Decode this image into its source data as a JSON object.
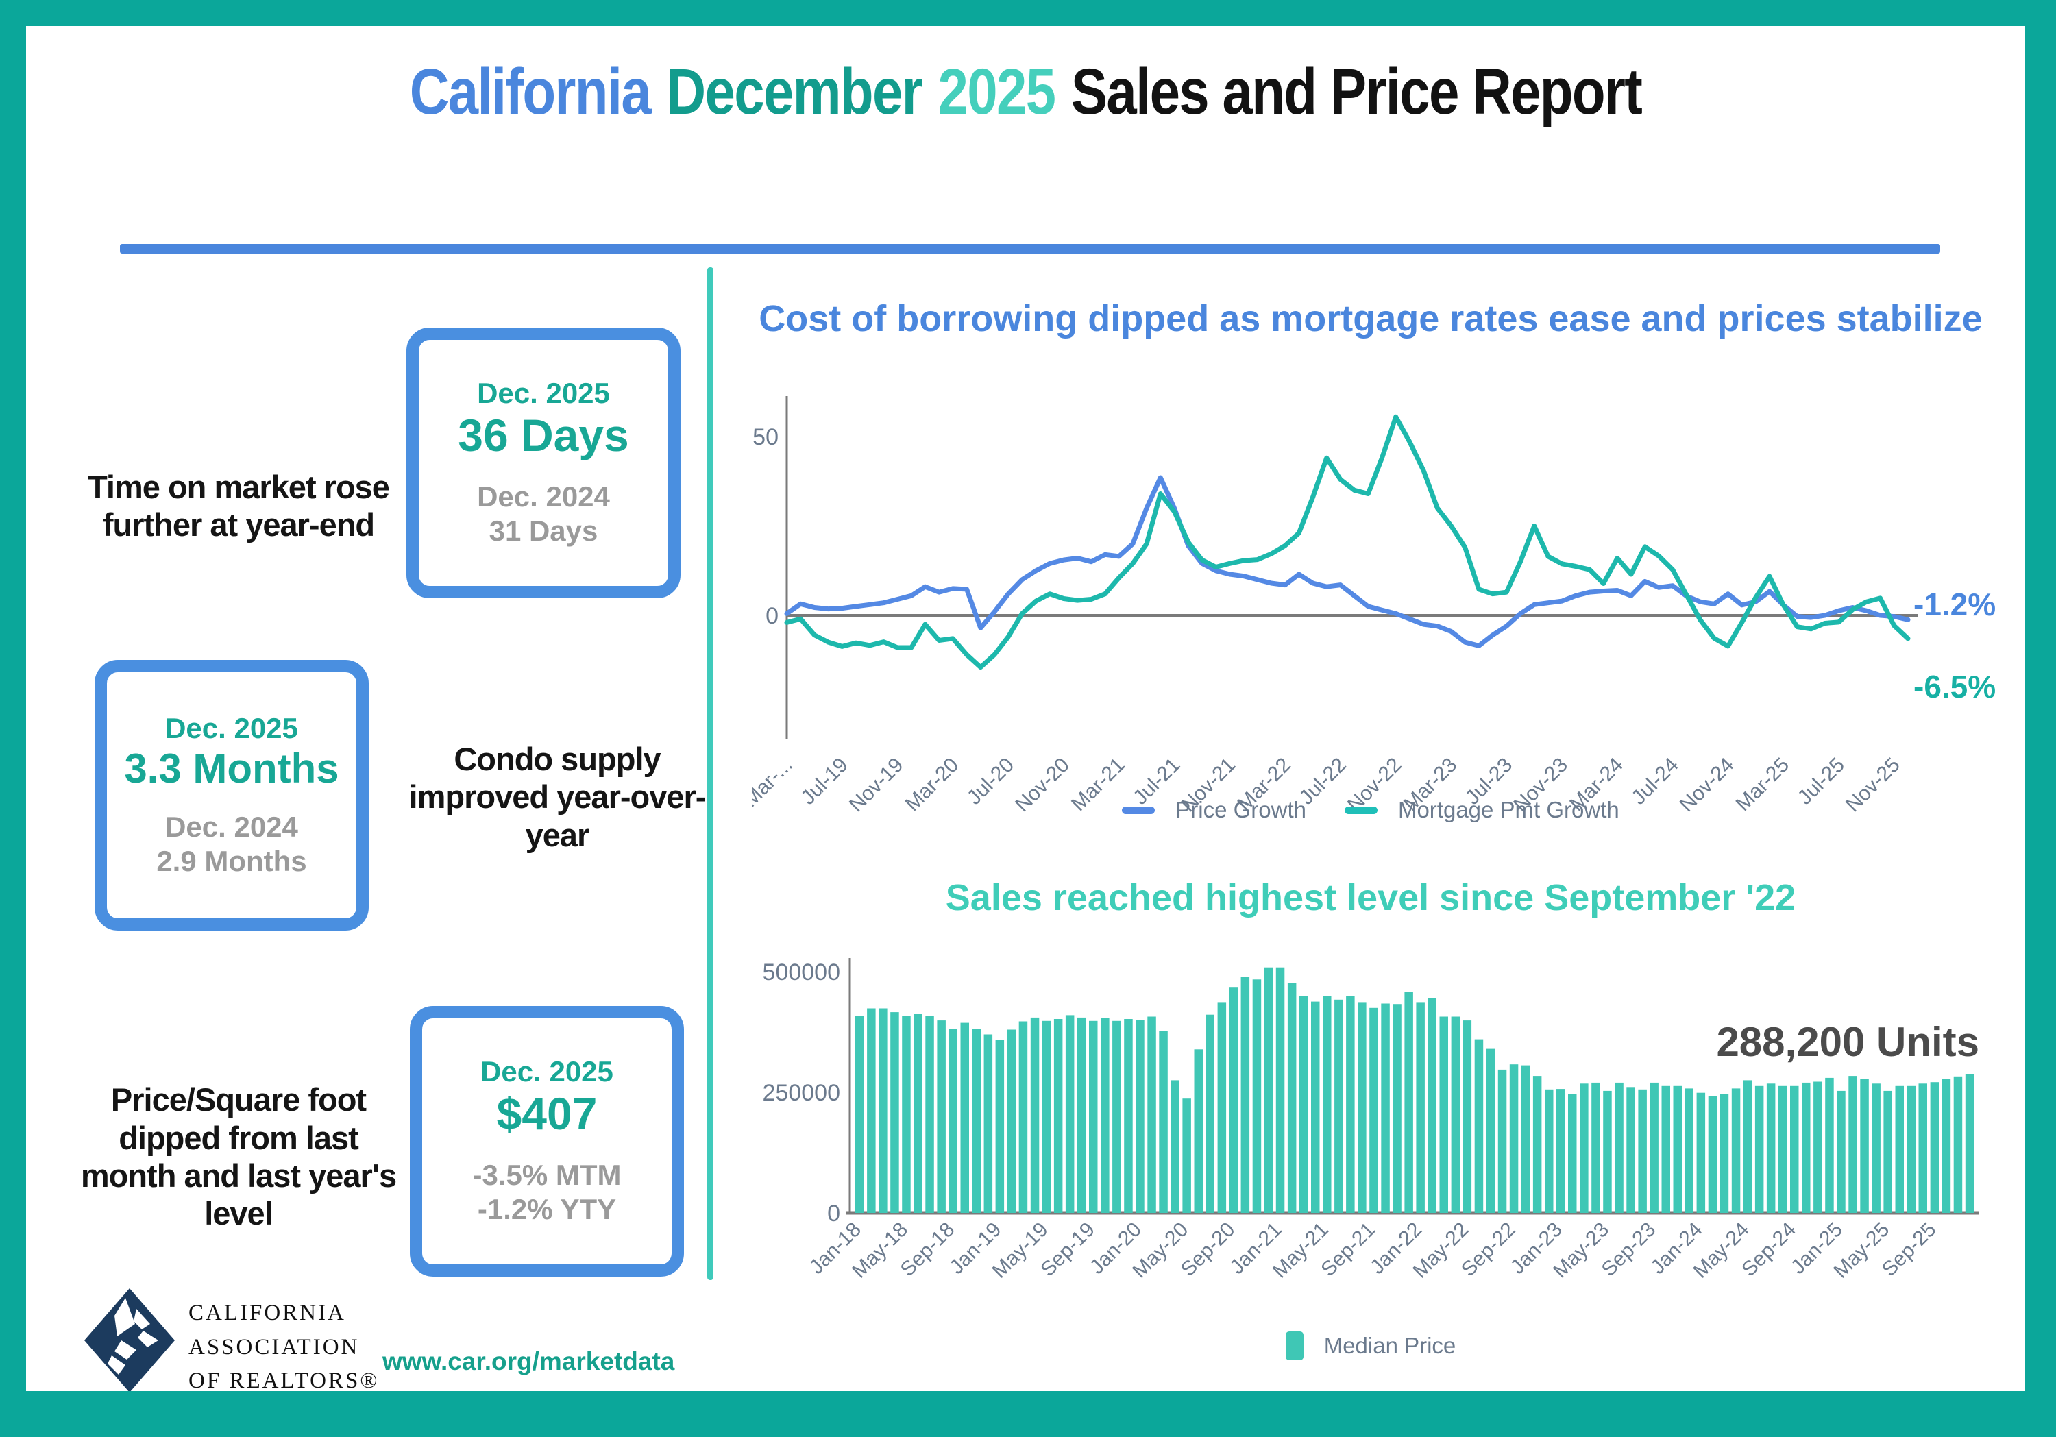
{
  "header": {
    "title_parts": [
      {
        "text": "California",
        "color": "#4a86dd"
      },
      {
        "text": "December",
        "color": "#129c8d"
      },
      {
        "text": "2025",
        "color": "#45cfbc"
      },
      {
        "text": "Sales and Price Report",
        "color": "#121212"
      }
    ]
  },
  "colors": {
    "frame": "#0ba79a",
    "accent_blue": "#4a86dd",
    "teal_dark": "#129c8d",
    "teal_light": "#45cfbc",
    "box_border": "#4a8fe0",
    "stat_teal": "#18a795",
    "stat_gray": "#9a9a9a",
    "bar_teal": "#3fc7b5",
    "line_blue": "#5489e4",
    "line_teal": "#1db8ac",
    "axis_gray": "#7a7a7a",
    "tick_gray": "#6b7a8d",
    "units_gray": "#4b4b4b",
    "logo_navy": "#1c3b5e"
  },
  "stats": [
    {
      "label": "Time on market rose further at year-end",
      "box": {
        "period": "Dec. 2025",
        "value": "36 Days",
        "sub1": "Dec. 2024",
        "sub2": "31 Days"
      }
    },
    {
      "label": "Condo supply improved year-over-year",
      "box": {
        "period": "Dec. 2025",
        "value": "3.3 Months",
        "sub1": "Dec. 2024",
        "sub2": "2.9 Months"
      }
    },
    {
      "label": "Price/Square foot dipped from last month and last year's level",
      "box": {
        "period": "Dec. 2025",
        "value": "$407",
        "sub1": "-3.5% MTM",
        "sub2": "-1.2% YTY"
      }
    }
  ],
  "footer": {
    "logo_lines": [
      "CALIFORNIA",
      "ASSOCIATION",
      "OF REALTORS®"
    ],
    "website": "www.car.org/marketdata"
  },
  "chart_data": [
    {
      "type": "line",
      "title": "Cost of borrowing dipped as mortgage rates ease and prices stabilize",
      "months": [
        "Mar-19",
        "Apr-19",
        "May-19",
        "Jun-19",
        "Jul-19",
        "Aug-19",
        "Sep-19",
        "Oct-19",
        "Nov-19",
        "Dec-19",
        "Jan-20",
        "Feb-20",
        "Mar-20",
        "Apr-20",
        "May-20",
        "Jun-20",
        "Jul-20",
        "Aug-20",
        "Sep-20",
        "Oct-20",
        "Nov-20",
        "Dec-20",
        "Jan-21",
        "Feb-21",
        "Mar-21",
        "Apr-21",
        "May-21",
        "Jun-21",
        "Jul-21",
        "Aug-21",
        "Sep-21",
        "Oct-21",
        "Nov-21",
        "Dec-21",
        "Jan-22",
        "Feb-22",
        "Mar-22",
        "Apr-22",
        "May-22",
        "Jun-22",
        "Jul-22",
        "Aug-22",
        "Sep-22",
        "Oct-22",
        "Nov-22",
        "Dec-22",
        "Jan-23",
        "Feb-23",
        "Mar-23",
        "Apr-23",
        "May-23",
        "Jun-23",
        "Jul-23",
        "Aug-23",
        "Sep-23",
        "Oct-23",
        "Nov-23",
        "Dec-23",
        "Jan-24",
        "Feb-24",
        "Mar-24",
        "Apr-24",
        "May-24",
        "Jun-24",
        "Jul-24",
        "Aug-24",
        "Sep-24",
        "Oct-24",
        "Nov-24",
        "Dec-24",
        "Jan-25",
        "Feb-25",
        "Mar-25",
        "Apr-25",
        "May-25",
        "Jun-25",
        "Jul-25",
        "Aug-25",
        "Sep-25",
        "Oct-25",
        "Nov-25",
        "Dec-25"
      ],
      "x_tick_labels": [
        "Mar-...",
        "Jul-19",
        "Nov-19",
        "Mar-20",
        "Jul-20",
        "Nov-20",
        "Mar-21",
        "Jul-21",
        "Nov-21",
        "Mar-22",
        "Jul-22",
        "Nov-22",
        "Mar-23",
        "Jul-23",
        "Nov-23",
        "Mar-24",
        "Jul-24",
        "Nov-24",
        "Mar-25",
        "Jul-25",
        "Nov-25"
      ],
      "y_ticks": [
        50,
        0
      ],
      "ylim": [
        -20,
        62
      ],
      "series": [
        {
          "name": "Price Growth",
          "color": "#5489e4",
          "values": [
            0.5,
            3.2,
            2.2,
            1.8,
            2.0,
            2.5,
            3.0,
            3.5,
            4.5,
            5.5,
            8.0,
            6.5,
            7.5,
            7.3,
            -3.5,
            1.0,
            6.0,
            10.0,
            12.5,
            14.5,
            15.5,
            16.0,
            15.0,
            17.0,
            16.5,
            20.0,
            30.0,
            38.5,
            30.0,
            19.5,
            14.5,
            12.5,
            11.5,
            11.0,
            10.0,
            9.0,
            8.5,
            11.5,
            9.0,
            8.0,
            8.5,
            5.5,
            2.5,
            1.5,
            0.5,
            -1.0,
            -2.5,
            -3.0,
            -4.5,
            -7.5,
            -8.5,
            -5.5,
            -3.0,
            0.5,
            3.0,
            3.5,
            4.0,
            5.5,
            6.5,
            6.8,
            7.0,
            5.5,
            9.5,
            7.8,
            8.3,
            5.4,
            3.8,
            3.2,
            6.0,
            2.9,
            3.8,
            6.7,
            2.9,
            -0.3,
            -0.6,
            0.0,
            1.3,
            2.2,
            1.3,
            0.0,
            -0.3,
            -1.2
          ]
        },
        {
          "name": "Mortgage Pmt Growth",
          "color": "#1db8ac",
          "values": [
            -2.0,
            -1.0,
            -5.5,
            -7.5,
            -8.7,
            -7.7,
            -8.4,
            -7.4,
            -9.0,
            -9.0,
            -2.5,
            -7.0,
            -6.5,
            -11.0,
            -14.5,
            -11.0,
            -6.0,
            0.5,
            4.0,
            6.0,
            4.7,
            4.2,
            4.5,
            6.0,
            10.5,
            14.5,
            20.0,
            34.0,
            29.0,
            20.5,
            15.5,
            13.5,
            14.5,
            15.3,
            15.6,
            17.2,
            19.5,
            23.0,
            33.0,
            44.0,
            38.0,
            35.0,
            34.0,
            44.0,
            55.5,
            48.5,
            40.5,
            30.0,
            25.0,
            19.0,
            7.3,
            6.0,
            6.5,
            15.0,
            25.0,
            16.5,
            14.4,
            13.7,
            12.8,
            8.9,
            16.0,
            11.5,
            19.2,
            16.6,
            12.8,
            5.7,
            -1.3,
            -6.4,
            -8.6,
            -2.0,
            5.0,
            10.9,
            2.9,
            -3.2,
            -3.8,
            -2.2,
            -1.9,
            1.6,
            3.8,
            4.8,
            -2.9,
            -6.5
          ]
        }
      ],
      "end_labels": [
        {
          "text": "-1.2%",
          "color": "#4a86dd"
        },
        {
          "text": "-6.5%",
          "color": "#17b0a4"
        }
      ],
      "legend_position": "bottom",
      "grid": false
    },
    {
      "type": "bar",
      "title": "Sales reached highest level since September '22",
      "categories": [
        "Jan-18",
        "Feb-18",
        "Mar-18",
        "Apr-18",
        "May-18",
        "Jun-18",
        "Jul-18",
        "Aug-18",
        "Sep-18",
        "Oct-18",
        "Nov-18",
        "Dec-18",
        "Jan-19",
        "Feb-19",
        "Mar-19",
        "Apr-19",
        "May-19",
        "Jun-19",
        "Jul-19",
        "Aug-19",
        "Sep-19",
        "Oct-19",
        "Nov-19",
        "Dec-19",
        "Jan-20",
        "Feb-20",
        "Mar-20",
        "Apr-20",
        "May-20",
        "Jun-20",
        "Jul-20",
        "Aug-20",
        "Sep-20",
        "Oct-20",
        "Nov-20",
        "Dec-20",
        "Jan-21",
        "Feb-21",
        "Mar-21",
        "Apr-21",
        "May-21",
        "Jun-21",
        "Jul-21",
        "Aug-21",
        "Sep-21",
        "Oct-21",
        "Nov-21",
        "Dec-21",
        "Jan-22",
        "Feb-22",
        "Mar-22",
        "Apr-22",
        "May-22",
        "Jun-22",
        "Jul-22",
        "Aug-22",
        "Sep-22",
        "Oct-22",
        "Nov-22",
        "Dec-22",
        "Jan-23",
        "Feb-23",
        "Mar-23",
        "Apr-23",
        "May-23",
        "Jun-23",
        "Jul-23",
        "Aug-23",
        "Sep-23",
        "Oct-23",
        "Nov-23",
        "Dec-23",
        "Jan-24",
        "Feb-24",
        "Mar-24",
        "Apr-24",
        "May-24",
        "Jun-24",
        "Jul-24",
        "Aug-24",
        "Sep-24",
        "Oct-24",
        "Nov-24",
        "Dec-24",
        "Jan-25",
        "Feb-25",
        "Mar-25",
        "Apr-25",
        "May-25",
        "Jun-25",
        "Jul-25",
        "Aug-25",
        "Sep-25",
        "Oct-25",
        "Nov-25",
        "Dec-25"
      ],
      "values": [
        408000,
        424000,
        424000,
        416000,
        408000,
        412000,
        408000,
        399000,
        382000,
        394000,
        381000,
        370000,
        358000,
        380000,
        397000,
        405000,
        398000,
        402000,
        410000,
        405000,
        398000,
        404000,
        398000,
        402000,
        400000,
        407000,
        377000,
        275000,
        237000,
        339000,
        411000,
        437000,
        467000,
        489000,
        484000,
        509000,
        509000,
        476000,
        450000,
        438000,
        450000,
        442000,
        449000,
        437000,
        425000,
        434000,
        433000,
        458000,
        437000,
        445000,
        407000,
        407000,
        399000,
        360000,
        340000,
        297000,
        308000,
        306000,
        284000,
        256000,
        257000,
        246000,
        268000,
        270000,
        253000,
        270000,
        261000,
        256000,
        270000,
        263000,
        263000,
        258000,
        249000,
        242000,
        246000,
        258000,
        275000,
        263000,
        268000,
        263000,
        263000,
        270000,
        272000,
        280000,
        253000,
        284000,
        278000,
        268000,
        253000,
        263000,
        263000,
        268000,
        271000,
        277000,
        283000,
        288200
      ],
      "bar_color": "#3fc7b5",
      "y_ticks": [
        500000,
        250000,
        0
      ],
      "ylim": [
        0,
        530000
      ],
      "annotation": "288,200 Units",
      "legend": [
        {
          "label": "Median Price",
          "color": "#3fc7b5"
        }
      ],
      "grid": false
    }
  ]
}
